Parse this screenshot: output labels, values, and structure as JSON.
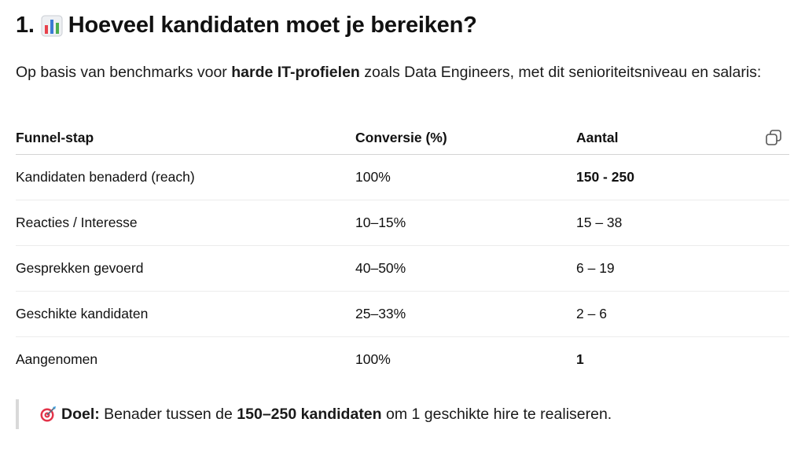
{
  "heading": {
    "number": "1.",
    "icon": "bar-chart-icon",
    "text": "Hoeveel kandidaten moet je bereiken?"
  },
  "intro": {
    "part1": "Op basis van benchmarks voor ",
    "bold": "harde IT-profielen",
    "part2": " zoals Data Engineers, met dit senioriteitsniveau en salaris:"
  },
  "table": {
    "headers": [
      "Funnel-stap",
      "Conversie (%)",
      "Aantal"
    ],
    "copy_icon": "copy-icon",
    "rows": [
      {
        "stap": "Kandidaten benaderd (reach)",
        "conversie": "100%",
        "aantal": "150 - 250",
        "aantal_bold": true
      },
      {
        "stap": "Reacties / Interesse",
        "conversie": "10–15%",
        "aantal": "15 – 38",
        "aantal_bold": false
      },
      {
        "stap": "Gesprekken gevoerd",
        "conversie": "40–50%",
        "aantal": "6 – 19",
        "aantal_bold": false
      },
      {
        "stap": "Geschikte kandidaten",
        "conversie": "25–33%",
        "aantal": "2 – 6",
        "aantal_bold": false
      },
      {
        "stap": "Aangenomen",
        "conversie": "100%",
        "aantal": "1",
        "aantal_bold": true
      }
    ]
  },
  "callout": {
    "icon": "target-icon",
    "label": "Doel:",
    "text1": " Benader tussen de ",
    "bold": "150–250 kandidaten",
    "text2": " om 1 geschikte hire te realiseren."
  },
  "colors": {
    "text": "#111111",
    "border": "#d4d4d4",
    "callout_bar": "#d9d9d9"
  }
}
